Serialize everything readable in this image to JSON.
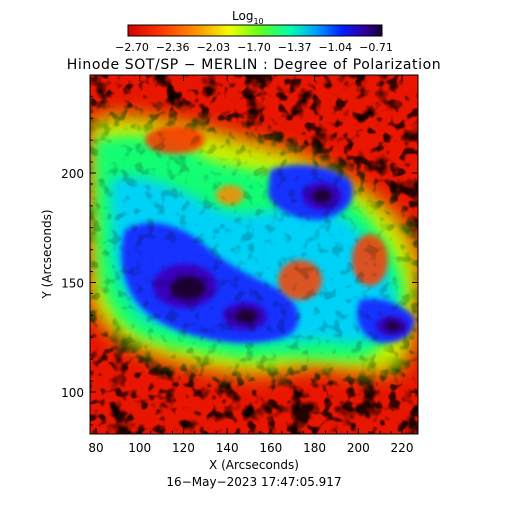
{
  "colorbar": {
    "label_base": "Log",
    "label_sub": "10",
    "ticks": [
      "−2.70",
      "−2.36",
      "−2.03",
      "−1.70",
      "−1.37",
      "−1.04",
      "−0.71"
    ]
  },
  "title": "Hinode SOT/SP − MERLIN : Degree of Polarization",
  "x_axis": {
    "label": "X (Arcseconds)",
    "ticks": [
      "80",
      "100",
      "120",
      "140",
      "160",
      "180",
      "200",
      "220"
    ]
  },
  "y_axis": {
    "label": "Y (Arcseconds)",
    "ticks": [
      "100",
      "150",
      "200"
    ]
  },
  "timestamp": "16−May−2023 17:47:05.917",
  "colors": {
    "scale": [
      "#d40000",
      "#ff2a00",
      "#ff8a00",
      "#ffe800",
      "#a8ff00",
      "#00ff64",
      "#00c8ff",
      "#0040ff",
      "#2a00c8",
      "#1a0040"
    ]
  }
}
